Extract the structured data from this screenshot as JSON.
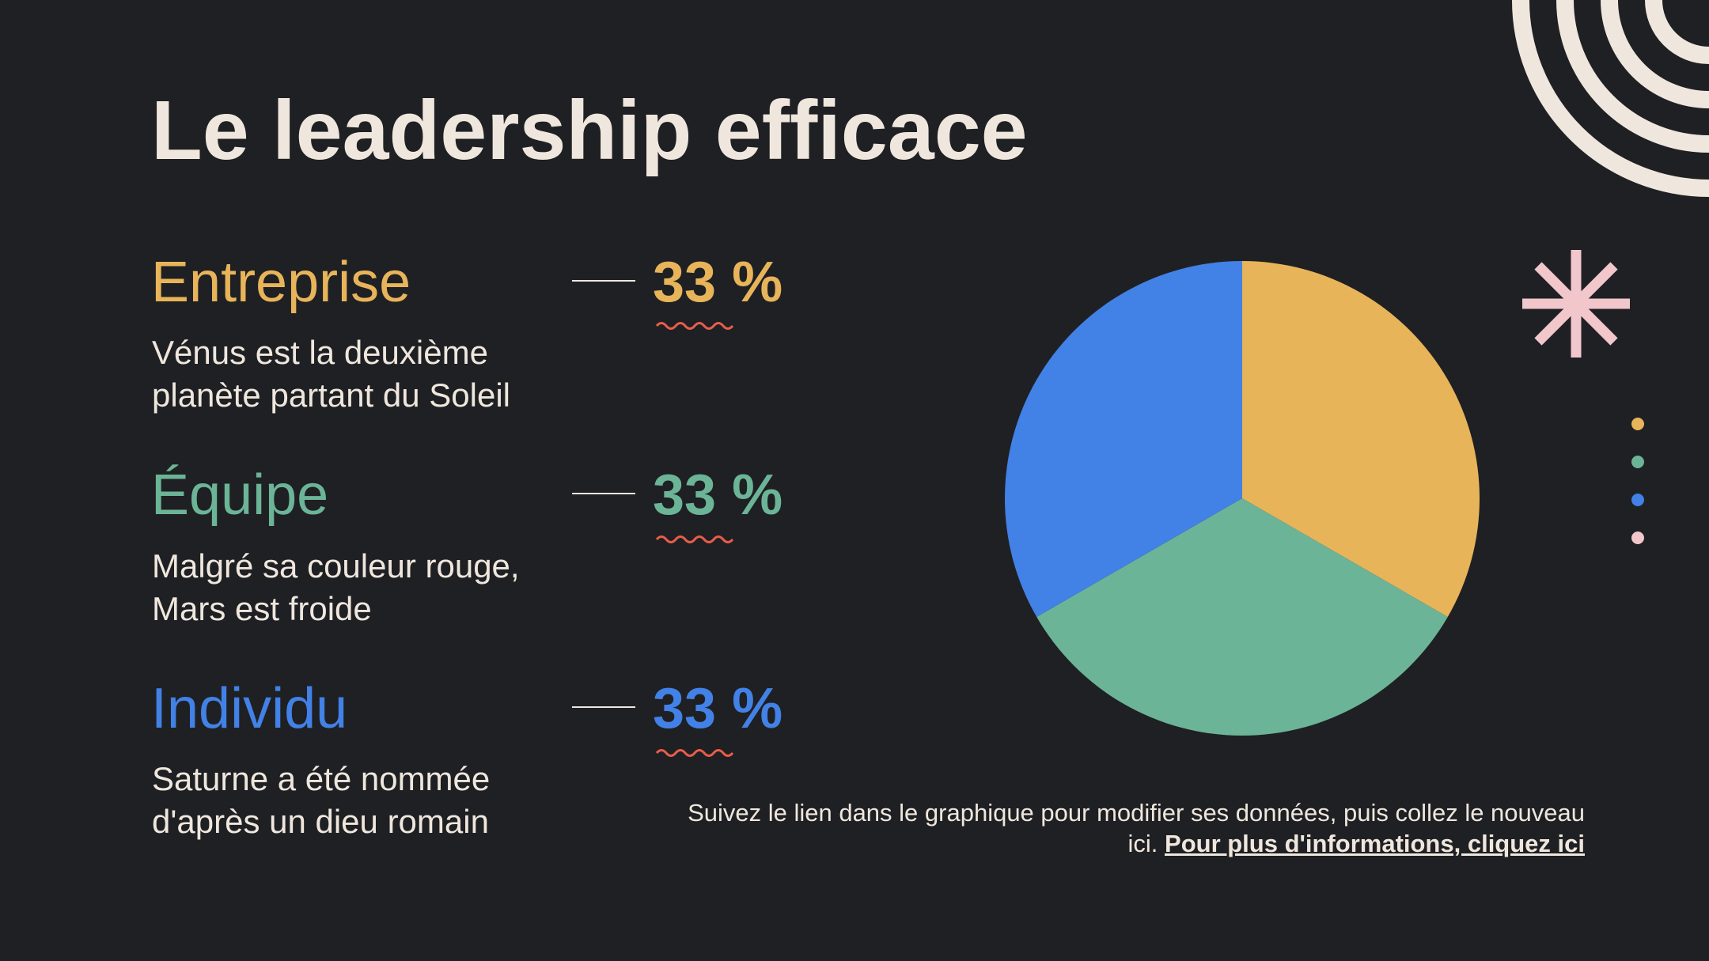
{
  "slide": {
    "title": "Le leadership efficace",
    "footnote_text": "Suivez le lien dans le graphique pour modifier ses données, puis collez le nouveau ici. ",
    "footnote_link": "Pour plus d'informations, cliquez ici"
  },
  "items": [
    {
      "name": "Entreprise",
      "percent": "33 %",
      "description": "Vénus est la deuxième\nplanète partant du Soleil",
      "color": "#e8b45a"
    },
    {
      "name": "Équipe",
      "percent": "33 %",
      "description": "Malgré sa couleur rouge,\nMars est froide",
      "color": "#6cb497"
    },
    {
      "name": "Individu",
      "percent": "33 %",
      "description": "Saturne a été nommée\nd'après un dieu romain",
      "color": "#4281e6"
    }
  ],
  "chart_data": {
    "type": "pie",
    "categories": [
      "Entreprise",
      "Équipe",
      "Individu"
    ],
    "values": [
      33,
      33,
      33
    ],
    "colors": [
      "#e8b45a",
      "#6cb497",
      "#4281e6"
    ]
  },
  "decor": {
    "accent_cream": "#efe7de",
    "accent_pink": "#f2c7cc",
    "squiggle_color": "#e85d4a",
    "dot_colors": [
      "#e8b45a",
      "#6cb497",
      "#4281e6",
      "#f2c7cc"
    ]
  }
}
